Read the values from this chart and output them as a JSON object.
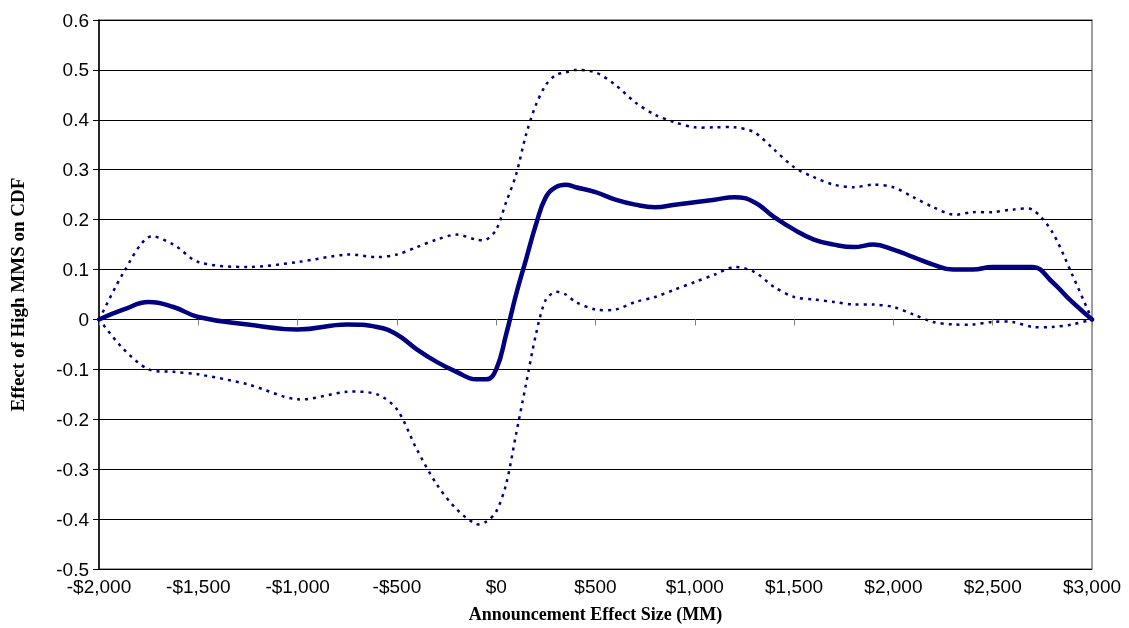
{
  "chart_data": {
    "type": "line",
    "xlabel": "Announcement Effect Size (MM)",
    "ylabel": "Effect of High MMS on CDF",
    "xlim": [
      -2000,
      3000
    ],
    "xticks": [
      {
        "value": -2000,
        "label": "-$2,000"
      },
      {
        "value": -1500,
        "label": "-$1,500"
      },
      {
        "value": -1000,
        "label": "-$1,000"
      },
      {
        "value": -500,
        "label": "-$500"
      },
      {
        "value": 0,
        "label": "$0"
      },
      {
        "value": 500,
        "label": "$500"
      },
      {
        "value": 1000,
        "label": "$1,000"
      },
      {
        "value": 1500,
        "label": "$1,500"
      },
      {
        "value": 2000,
        "label": "$2,000"
      },
      {
        "value": 2500,
        "label": "$2,500"
      },
      {
        "value": 3000,
        "label": "$3,000"
      }
    ],
    "ylim": [
      -0.5,
      0.6
    ],
    "yticks": [
      -0.5,
      -0.4,
      -0.3,
      -0.2,
      -0.1,
      0,
      0.1,
      0.2,
      0.3,
      0.4,
      0.5,
      0.6
    ],
    "grid": "y",
    "marker": "none",
    "x": [
      -2000,
      -1875,
      -1750,
      -1625,
      -1500,
      -1250,
      -1000,
      -750,
      -600,
      -500,
      -400,
      -300,
      -200,
      -100,
      -50,
      0,
      50,
      100,
      150,
      200,
      250,
      300,
      350,
      400,
      500,
      600,
      700,
      800,
      900,
      1000,
      1100,
      1200,
      1300,
      1400,
      1500,
      1600,
      1700,
      1800,
      1900,
      2000,
      2100,
      2200,
      2300,
      2400,
      2500,
      2600,
      2700,
      2800,
      2900,
      3000
    ],
    "series": [
      {
        "color": "#000080",
        "line_style": "solid",
        "values": [
          0,
          0.02,
          0.035,
          0.025,
          0.005,
          -0.01,
          -0.02,
          -0.01,
          -0.015,
          -0.03,
          -0.06,
          -0.085,
          -0.105,
          -0.12,
          -0.12,
          -0.1,
          -0.03,
          0.05,
          0.12,
          0.19,
          0.245,
          0.265,
          0.27,
          0.265,
          0.255,
          0.24,
          0.23,
          0.225,
          0.23,
          0.235,
          0.24,
          0.245,
          0.235,
          0.205,
          0.18,
          0.16,
          0.15,
          0.145,
          0.15,
          0.14,
          0.125,
          0.11,
          0.1,
          0.1,
          0.105,
          0.105,
          0.105,
          0.075,
          0.035,
          0
        ],
        "upper": [
          0,
          0.095,
          0.165,
          0.15,
          0.115,
          0.105,
          0.115,
          0.13,
          0.125,
          0.13,
          0.145,
          0.16,
          0.17,
          0.16,
          0.16,
          0.18,
          0.235,
          0.29,
          0.37,
          0.43,
          0.47,
          0.49,
          0.495,
          0.5,
          0.495,
          0.47,
          0.435,
          0.41,
          0.395,
          0.385,
          0.385,
          0.385,
          0.375,
          0.34,
          0.305,
          0.285,
          0.27,
          0.265,
          0.27,
          0.265,
          0.245,
          0.225,
          0.21,
          0.215,
          0.215,
          0.22,
          0.22,
          0.175,
          0.09,
          0
        ],
        "lower": [
          0,
          -0.06,
          -0.1,
          -0.105,
          -0.11,
          -0.13,
          -0.16,
          -0.145,
          -0.15,
          -0.18,
          -0.26,
          -0.33,
          -0.38,
          -0.41,
          -0.405,
          -0.385,
          -0.33,
          -0.23,
          -0.13,
          -0.03,
          0.04,
          0.055,
          0.05,
          0.035,
          0.02,
          0.02,
          0.035,
          0.045,
          0.06,
          0.075,
          0.09,
          0.105,
          0.095,
          0.065,
          0.045,
          0.04,
          0.035,
          0.03,
          0.03,
          0.025,
          0.01,
          -0.005,
          -0.01,
          -0.01,
          -0.005,
          -0.005,
          -0.015,
          -0.015,
          -0.01,
          0
        ]
      }
    ]
  }
}
